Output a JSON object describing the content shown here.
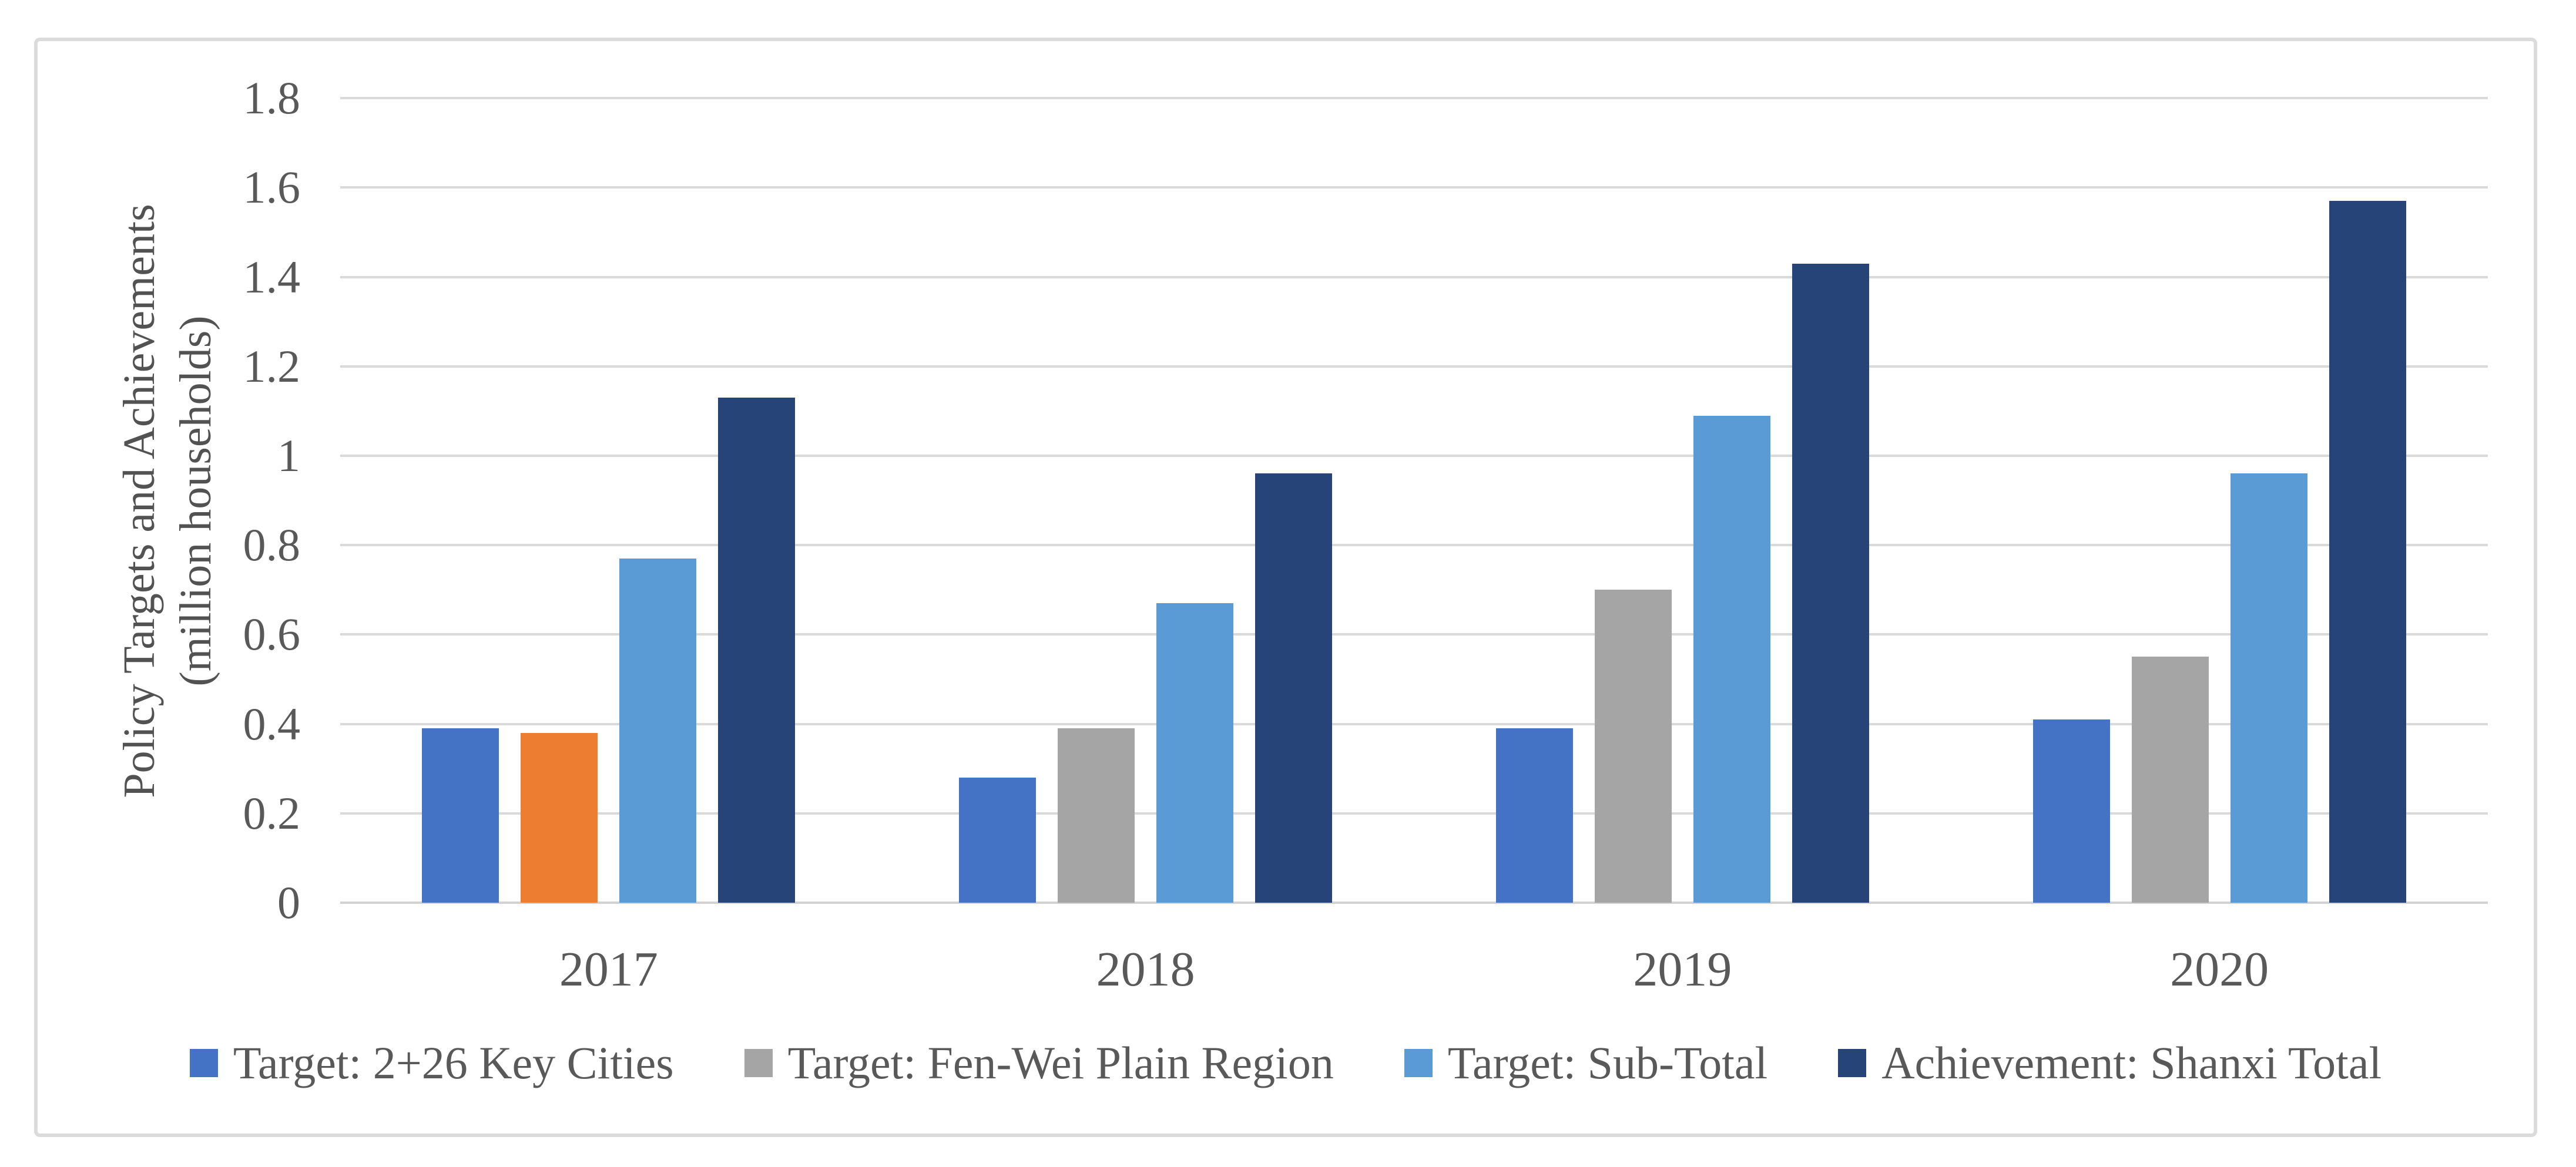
{
  "figure": {
    "y_axis": {
      "title_line1": "Policy Targets and Achievements",
      "title_line2": "(million households)",
      "tick_labels": [
        "1.8",
        "1.6",
        "1.4",
        "1.2",
        "1",
        "0.8",
        "0.6",
        "0.4",
        "0.2",
        "0"
      ],
      "tick_values": [
        1.8,
        1.6,
        1.4,
        1.2,
        1.0,
        0.8,
        0.6,
        0.4,
        0.2,
        0
      ]
    },
    "x_axis": {
      "labels": [
        "2017",
        "2018",
        "2019",
        "2020"
      ]
    },
    "colors": {
      "gridline": "#D9D9D9",
      "frame_border": "#DBDBDB",
      "axis_text": "#595959",
      "title_text": "#525252",
      "background": "#FFFFFF"
    }
  },
  "chart_data": {
    "type": "bar",
    "title": "",
    "xlabel": "",
    "ylabel": "Policy Targets and Achievements (million households)",
    "ylim": [
      0,
      1.8
    ],
    "y_step": 0.2,
    "grid": true,
    "legend_position": "bottom",
    "categories": [
      "2017",
      "2018",
      "2019",
      "2020"
    ],
    "series": [
      {
        "name": "Target: 2+26 Key Cities",
        "color": "#4472C4",
        "values": [
          0.39,
          0.28,
          0.39,
          0.41
        ]
      },
      {
        "name": "Target: Fen-Wei Plain Region",
        "color": "#A5A5A5",
        "values": [
          0.38,
          0.39,
          0.7,
          0.55
        ],
        "point_colors": [
          "#ED7D31",
          null,
          null,
          null
        ]
      },
      {
        "name": "Target: Sub-Total",
        "color": "#5B9BD5",
        "values": [
          0.77,
          0.67,
          1.09,
          0.96
        ]
      },
      {
        "name": "Achievement: Shanxi Total",
        "color": "#264478",
        "values": [
          1.13,
          0.96,
          1.43,
          1.57
        ]
      }
    ]
  }
}
